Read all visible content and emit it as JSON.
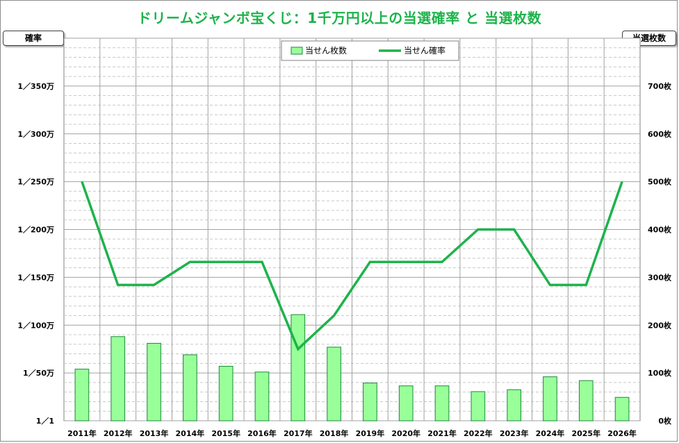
{
  "chart_data": {
    "type": "bar",
    "title": "ドリームジャンボ宝くじ：1千万円以上の当選確率 と 当選枚数",
    "y_left_label": "確率",
    "y_right_label": "当選枚数",
    "categories": [
      "2011年",
      "2012年",
      "2013年",
      "2014年",
      "2015年",
      "2016年",
      "2017年",
      "2018年",
      "2019年",
      "2020年",
      "2021年",
      "2022年",
      "2023年",
      "2024年",
      "2025年",
      "2026年"
    ],
    "series": [
      {
        "name": "当せん枚数",
        "kind": "bar",
        "axis": "right",
        "color": "#99ff99",
        "stroke": "#1a8a3a",
        "values": [
          108,
          176,
          162,
          138,
          114,
          102,
          222,
          154,
          79,
          73,
          73,
          61,
          65,
          92,
          84,
          49
        ]
      },
      {
        "name": "当せん確率",
        "kind": "line",
        "axis": "left",
        "color": "#1db34b",
        "values": [
          250,
          142,
          142,
          166,
          166,
          166,
          75,
          110,
          166,
          166,
          166,
          200,
          200,
          142,
          142,
          250
        ]
      }
    ],
    "y_left_ticks": [
      "1／1",
      "1／50万",
      "1／100万",
      "1／150万",
      "1／200万",
      "1／250万",
      "1／300万",
      "1／350万"
    ],
    "y_left_range": [
      0,
      350
    ],
    "y_right_ticks": [
      "0枚",
      "100枚",
      "200枚",
      "300枚",
      "400枚",
      "500枚",
      "600枚",
      "700枚"
    ],
    "y_right_range": [
      0,
      700
    ],
    "grid": true,
    "legend_position": "top-center"
  }
}
